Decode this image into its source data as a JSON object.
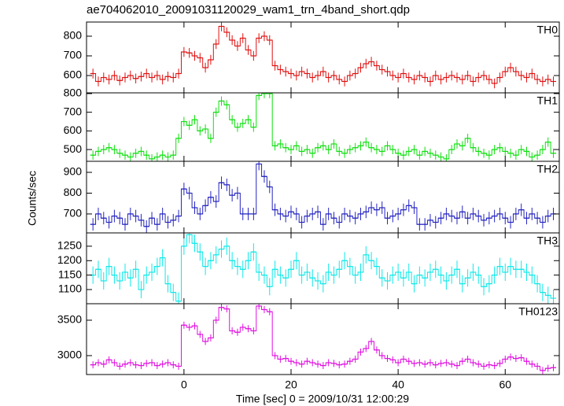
{
  "chart_data": {
    "type": "line",
    "title": "ae704062010_20091031120029_wam1_trn_4band_short.qdp",
    "y_label": "Counts/sec",
    "x_label": "Time [sec] 0 = 2009/10/31 12:00:29",
    "xlim": [
      -18.2,
      70.1
    ],
    "xticks": [
      0,
      20,
      40,
      60
    ],
    "x": [
      -17,
      -16,
      -15,
      -14,
      -13,
      -12,
      -11,
      -10,
      -9,
      -8,
      -7,
      -6,
      -5,
      -4,
      -3,
      -2,
      -1,
      0,
      1,
      2,
      3,
      4,
      5,
      6,
      7,
      8,
      9,
      10,
      11,
      12,
      13,
      14,
      15,
      16,
      17,
      18,
      19,
      20,
      21,
      22,
      23,
      24,
      25,
      26,
      27,
      28,
      29,
      30,
      31,
      32,
      33,
      34,
      35,
      36,
      37,
      38,
      39,
      40,
      41,
      42,
      43,
      44,
      45,
      46,
      47,
      48,
      49,
      50,
      51,
      52,
      53,
      54,
      55,
      56,
      57,
      58,
      59,
      60,
      61,
      62,
      63,
      64,
      65,
      66,
      67,
      68,
      69
    ],
    "series": [
      {
        "name": "TH0",
        "color": "#e01010",
        "ylim": [
          512,
          872
        ],
        "yticks": [
          600,
          700,
          800
        ],
        "error": 25,
        "values": [
          610,
          570,
          590,
          580,
          600,
          575,
          590,
          600,
          585,
          595,
          610,
          590,
          600,
          580,
          595,
          590,
          610,
          720,
          715,
          700,
          690,
          640,
          680,
          760,
          850,
          820,
          780,
          750,
          790,
          730,
          700,
          790,
          800,
          780,
          650,
          630,
          620,
          610,
          600,
          620,
          610,
          590,
          600,
          620,
          590,
          600,
          580,
          570,
          600,
          610,
          640,
          660,
          670,
          650,
          630,
          620,
          600,
          590,
          610,
          590,
          580,
          600,
          590,
          570,
          600,
          580,
          590,
          600,
          590,
          580,
          600,
          570,
          590,
          600,
          580,
          560,
          590,
          620,
          640,
          620,
          600,
          590,
          610,
          580,
          570,
          580,
          570
        ]
      },
      {
        "name": "TH1",
        "color": "#10e010",
        "ylim": [
          437,
          804
        ],
        "yticks": [
          500,
          600,
          700,
          800
        ],
        "error": 25,
        "values": [
          470,
          490,
          500,
          510,
          500,
          480,
          470,
          460,
          480,
          490,
          470,
          450,
          460,
          470,
          460,
          470,
          560,
          650,
          630,
          660,
          600,
          610,
          560,
          700,
          760,
          740,
          660,
          620,
          640,
          660,
          620,
          790,
          800,
          800,
          520,
          530,
          510,
          500,
          520,
          490,
          500,
          480,
          510,
          520,
          500,
          530,
          490,
          480,
          500,
          510,
          520,
          540,
          510,
          500,
          490,
          520,
          500,
          480,
          470,
          490,
          500,
          470,
          490,
          480,
          470,
          460,
          450,
          500,
          530,
          520,
          560,
          510,
          490,
          480,
          470,
          500,
          510,
          490,
          480,
          470,
          500,
          490,
          460,
          470,
          500,
          540,
          480
        ]
      },
      {
        "name": "TH2",
        "color": "#2525c0",
        "ylim": [
          609,
          953
        ],
        "yticks": [
          700,
          800,
          900
        ],
        "error": 30,
        "values": [
          650,
          700,
          680,
          660,
          690,
          680,
          650,
          700,
          690,
          670,
          640,
          680,
          650,
          700,
          660,
          670,
          690,
          820,
          800,
          730,
          700,
          740,
          780,
          760,
          850,
          840,
          790,
          800,
          700,
          700,
          700,
          940,
          880,
          830,
          720,
          700,
          690,
          710,
          700,
          660,
          690,
          700,
          710,
          650,
          700,
          680,
          660,
          700,
          690,
          680,
          700,
          710,
          730,
          720,
          730,
          680,
          690,
          700,
          720,
          740,
          730,
          650,
          650,
          670,
          660,
          680,
          700,
          690,
          680,
          710,
          680,
          700,
          690,
          670,
          680,
          690,
          700,
          680,
          660,
          700,
          720,
          680,
          700,
          680,
          660,
          690,
          700
        ]
      },
      {
        "name": "TH3",
        "color": "#10e8e8",
        "ylim": [
          1051,
          1296
        ],
        "yticks": [
          1100,
          1150,
          1200,
          1250
        ],
        "error": 30,
        "values": [
          1150,
          1170,
          1130,
          1180,
          1150,
          1130,
          1160,
          1140,
          1170,
          1100,
          1150,
          1160,
          1180,
          1210,
          1120,
          1090,
          1060,
          1250,
          1290,
          1260,
          1230,
          1180,
          1200,
          1220,
          1240,
          1250,
          1200,
          1180,
          1170,
          1200,
          1230,
          1160,
          1150,
          1110,
          1170,
          1150,
          1140,
          1170,
          1200,
          1150,
          1160,
          1140,
          1130,
          1120,
          1160,
          1150,
          1170,
          1200,
          1180,
          1150,
          1160,
          1220,
          1200,
          1180,
          1140,
          1130,
          1150,
          1160,
          1140,
          1160,
          1120,
          1150,
          1140,
          1160,
          1170,
          1150,
          1130,
          1150,
          1170,
          1120,
          1140,
          1160,
          1150,
          1110,
          1120,
          1150,
          1180,
          1160,
          1180,
          1170,
          1170,
          1160,
          1150,
          1120,
          1090,
          1080,
          1070
        ]
      },
      {
        "name": "TH0123",
        "color": "#e010e0",
        "ylim": [
          2733,
          3733
        ],
        "yticks": [
          3000,
          3500
        ],
        "error": 50,
        "values": [
          2870,
          2900,
          2880,
          2940,
          2900,
          2850,
          2880,
          2900,
          2870,
          2860,
          2890,
          2900,
          2860,
          2880,
          2900,
          2870,
          2850,
          3430,
          3400,
          3420,
          3300,
          3200,
          3250,
          3500,
          3680,
          3660,
          3350,
          3330,
          3400,
          3380,
          3350,
          3700,
          3650,
          3620,
          3000,
          2950,
          2960,
          2920,
          2900,
          2880,
          2920,
          2900,
          2880,
          2860,
          2900,
          2890,
          2870,
          2880,
          2920,
          2950,
          3050,
          3100,
          3200,
          3080,
          3000,
          2960,
          2940,
          2900,
          2950,
          2920,
          2890,
          2900,
          2880,
          2900,
          2870,
          2890,
          2900,
          2880,
          2860,
          2920,
          2950,
          2900,
          2880,
          2850,
          2870,
          2860,
          2890,
          2950,
          2980,
          2960,
          2970,
          2920,
          2880,
          2850,
          2790,
          2820,
          2830
        ]
      }
    ]
  }
}
